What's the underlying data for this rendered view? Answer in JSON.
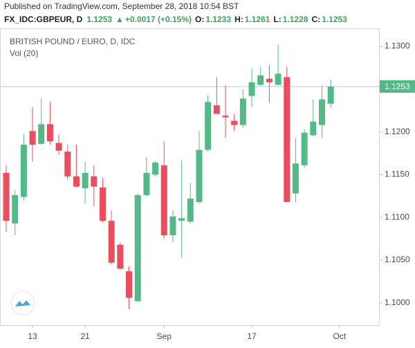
{
  "header": {
    "published": "Published on TradingView.com, September 28, 2018 10:54 BST",
    "symbol": "FX_IDC:GBPEUR, D",
    "arrow": "▲",
    "change": "+0.0017 (+0.15%)",
    "o_label": "O:",
    "h_label": "H:",
    "l_label": "L:",
    "c_label": "C:"
  },
  "chart_data": {
    "type": "candlestick",
    "legend": [
      "BRITISH POUND / EURO, D, IDC",
      "Vol (20)"
    ],
    "up_color": "#53b987",
    "down_color": "#eb4d5c",
    "open": [
      1.1152,
      1.1093,
      1.1124,
      1.1201,
      1.1186,
      1.1209,
      1.1187,
      1.1177,
      1.1148,
      1.1134,
      1.1148,
      1.1135,
      1.1096,
      1.1068,
      1.1037,
      1.1002,
      1.1126,
      1.115,
      1.1161,
      1.1079,
      1.1096,
      1.1095,
      1.1118,
      1.1179,
      1.1231,
      1.1219,
      1.1213,
      1.1208,
      1.1242,
      1.1255,
      1.1262,
      1.1255,
      1.1264,
      1.1128,
      1.1161,
      1.1196,
      1.1208,
      1.1233
    ],
    "high": [
      1.1161,
      1.1132,
      1.1197,
      1.1229,
      1.1239,
      1.1235,
      1.1197,
      1.1185,
      1.1185,
      1.1165,
      1.1161,
      1.1146,
      1.1108,
      1.1071,
      1.1043,
      1.1128,
      1.117,
      1.1166,
      1.1189,
      1.1108,
      1.1167,
      1.114,
      1.1201,
      1.1243,
      1.1264,
      1.1254,
      1.1221,
      1.125,
      1.1274,
      1.1276,
      1.1278,
      1.1302,
      1.1276,
      1.1193,
      1.1203,
      1.1238,
      1.1254,
      1.1261
    ],
    "low": [
      1.1083,
      1.1079,
      1.112,
      1.1165,
      1.1185,
      1.1185,
      1.1173,
      1.1144,
      1.1135,
      1.1116,
      1.1113,
      1.1094,
      1.1045,
      1.1039,
      1.0993,
      1.1001,
      1.1124,
      1.1148,
      1.1075,
      1.1071,
      1.1053,
      1.1093,
      1.1116,
      1.1177,
      1.1221,
      1.1193,
      1.1201,
      1.1205,
      1.1229,
      1.1254,
      1.1234,
      1.1254,
      1.1118,
      1.1118,
      1.1158,
      1.1195,
      1.1193,
      1.1228
    ],
    "close": [
      1.1096,
      1.1126,
      1.1185,
      1.1185,
      1.1209,
      1.1189,
      1.1178,
      1.1148,
      1.1136,
      1.1152,
      1.1136,
      1.1096,
      1.1047,
      1.104,
      1.1006,
      1.1126,
      1.1152,
      1.1164,
      1.1079,
      1.1101,
      1.1099,
      1.1122,
      1.1179,
      1.1235,
      1.1221,
      1.1217,
      1.1208,
      1.1239,
      1.1258,
      1.1266,
      1.1258,
      1.1268,
      1.1118,
      1.1163,
      1.1199,
      1.1212,
      1.1238,
      1.1253
    ],
    "xticks": [
      {
        "value": 3,
        "label": "13"
      },
      {
        "value": 9,
        "label": "21"
      },
      {
        "value": 18,
        "label": "Sep"
      },
      {
        "value": 28,
        "label": "17"
      },
      {
        "value": 38,
        "label": "Oct"
      }
    ],
    "ylim": [
      1.0974,
      1.1321
    ],
    "yticks": [
      {
        "value": 1.1,
        "label": "1.1000"
      },
      {
        "value": 1.105,
        "label": "1.1050"
      },
      {
        "value": 1.11,
        "label": "1.1100"
      },
      {
        "value": 1.115,
        "label": "1.1150"
      },
      {
        "value": 1.12,
        "label": "1.1200"
      },
      {
        "value": 1.125,
        "label": "1.1250"
      },
      {
        "value": 1.13,
        "label": "1.1300"
      }
    ],
    "grid": false
  }
}
